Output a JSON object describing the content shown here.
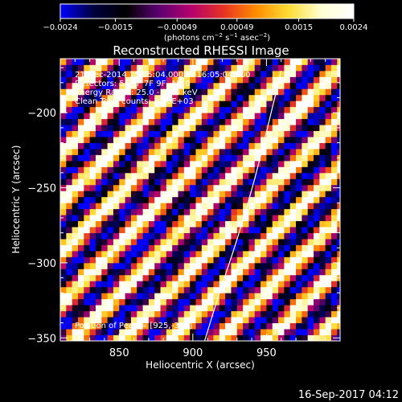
{
  "chart_data": {
    "type": "heatmap",
    "title": "Reconstructed RHESSI Image",
    "xlabel": "Heliocentric X (arcsec)",
    "ylabel": "Heliocentric Y (arcsec)",
    "xlim": [
      810,
      1000
    ],
    "ylim": [
      -352,
      -164
    ],
    "x_ticks": [
      {
        "value": 850,
        "label": "850"
      },
      {
        "value": 900,
        "label": "900"
      },
      {
        "value": 950,
        "label": "950"
      }
    ],
    "y_ticks": [
      {
        "value": -200,
        "label": "−200"
      },
      {
        "value": -250,
        "label": "−250"
      },
      {
        "value": -300,
        "label": "−300"
      },
      {
        "value": -350,
        "label": "−350"
      }
    ],
    "colorbar": {
      "range": [
        -0.0024,
        0.0024
      ],
      "tick_values": [
        -0.0024,
        -0.0015,
        -0.00049,
        0.00049,
        0.0015,
        0.0024
      ],
      "tick_labels": [
        "−0.0024",
        "−0.0015",
        "−0.00049",
        "0.00049",
        "0.0015",
        "0.0024"
      ],
      "unit_label": "(photons cm",
      "unit_exp1": "−2",
      "unit_mid": " s",
      "unit_exp2": "−1",
      "unit_mid2": " asec",
      "unit_exp3": "−2",
      "unit_end": ")",
      "colors": [
        "#0000ff",
        "#000040",
        "#000000",
        "#5a0070",
        "#b4006e",
        "#e63223",
        "#ff8c00",
        "#ffdc32",
        "#ffffd2",
        "#ffffff"
      ]
    },
    "annotations": {
      "time_range": "21-Dec-2014 15:55:04.000 to 16:05:04.000",
      "detectors": "Detectors: 5F 6F 7F 9F, Att 0",
      "energy_range": "Energy Range: 25.0 - 50.0 keV",
      "clean": "Clean   Total counts: 3.40E+03",
      "peak": "Position of Peak = [925,-334]"
    },
    "pattern": {
      "description_values": "diagonal stripe fringe pattern, flux oscillating between -0.0024 and 0.0024",
      "pixel_size_arcsec": 4,
      "stripe_period_arcsec": 33,
      "stripe_slope": 1.0
    },
    "limb_curve": {
      "points": [
        [
          908,
          -352
        ],
        [
          918,
          -320
        ],
        [
          930,
          -285
        ],
        [
          942,
          -245
        ],
        [
          952,
          -205
        ],
        [
          960,
          -172
        ]
      ]
    }
  },
  "footer": {
    "timestamp": "16-Sep-2017 04:12"
  }
}
